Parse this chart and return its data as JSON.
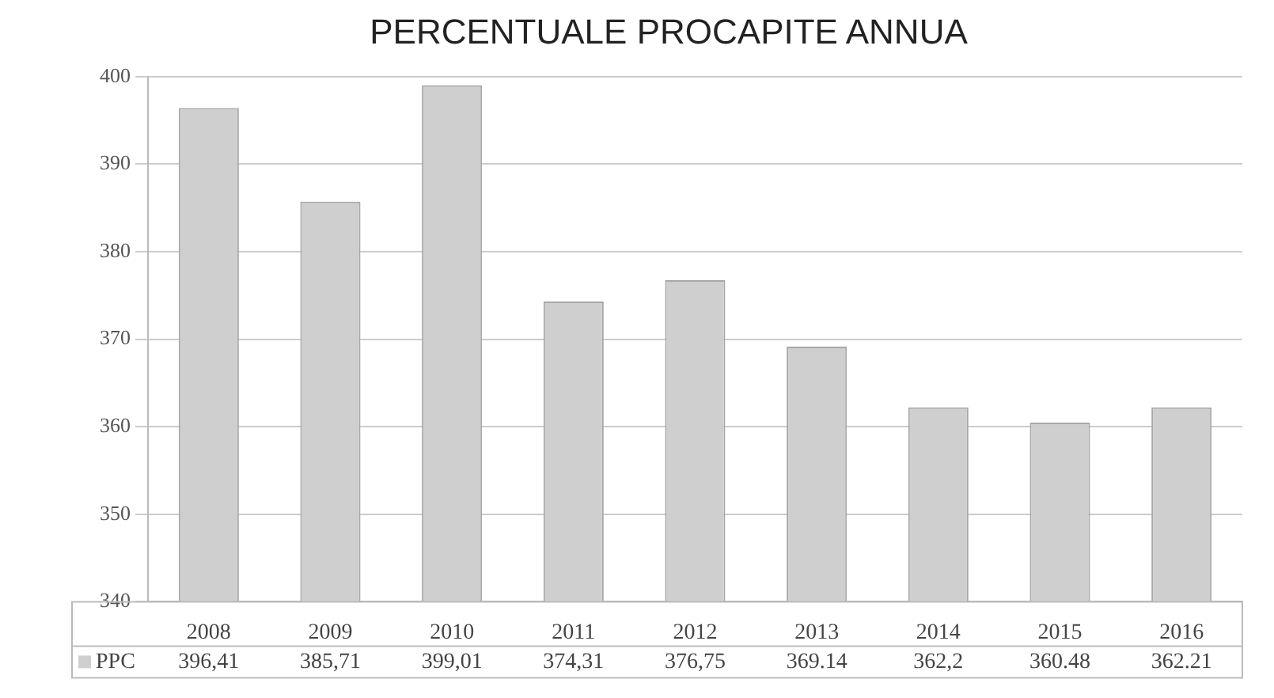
{
  "chart_data": {
    "type": "bar",
    "title": "PERCENTUALE PROCAPITE ANNUA",
    "categories": [
      "2008",
      "2009",
      "2010",
      "2011",
      "2012",
      "2013",
      "2014",
      "2015",
      "2016"
    ],
    "series": [
      {
        "name": "PPC",
        "color": "#cfcfcf",
        "values": [
          396.41,
          385.71,
          399.01,
          374.31,
          376.75,
          369.14,
          362.2,
          360.48,
          362.21
        ],
        "value_labels": [
          "396,41",
          "385,71",
          "399,01",
          "374,31",
          "376,75",
          "369.14",
          "362,2",
          "360.48",
          "362.21"
        ]
      }
    ],
    "ylim": [
      340,
      400
    ],
    "yticks": [
      340,
      350,
      360,
      370,
      380,
      390,
      400
    ],
    "grid": "y",
    "legend": "bottom"
  }
}
